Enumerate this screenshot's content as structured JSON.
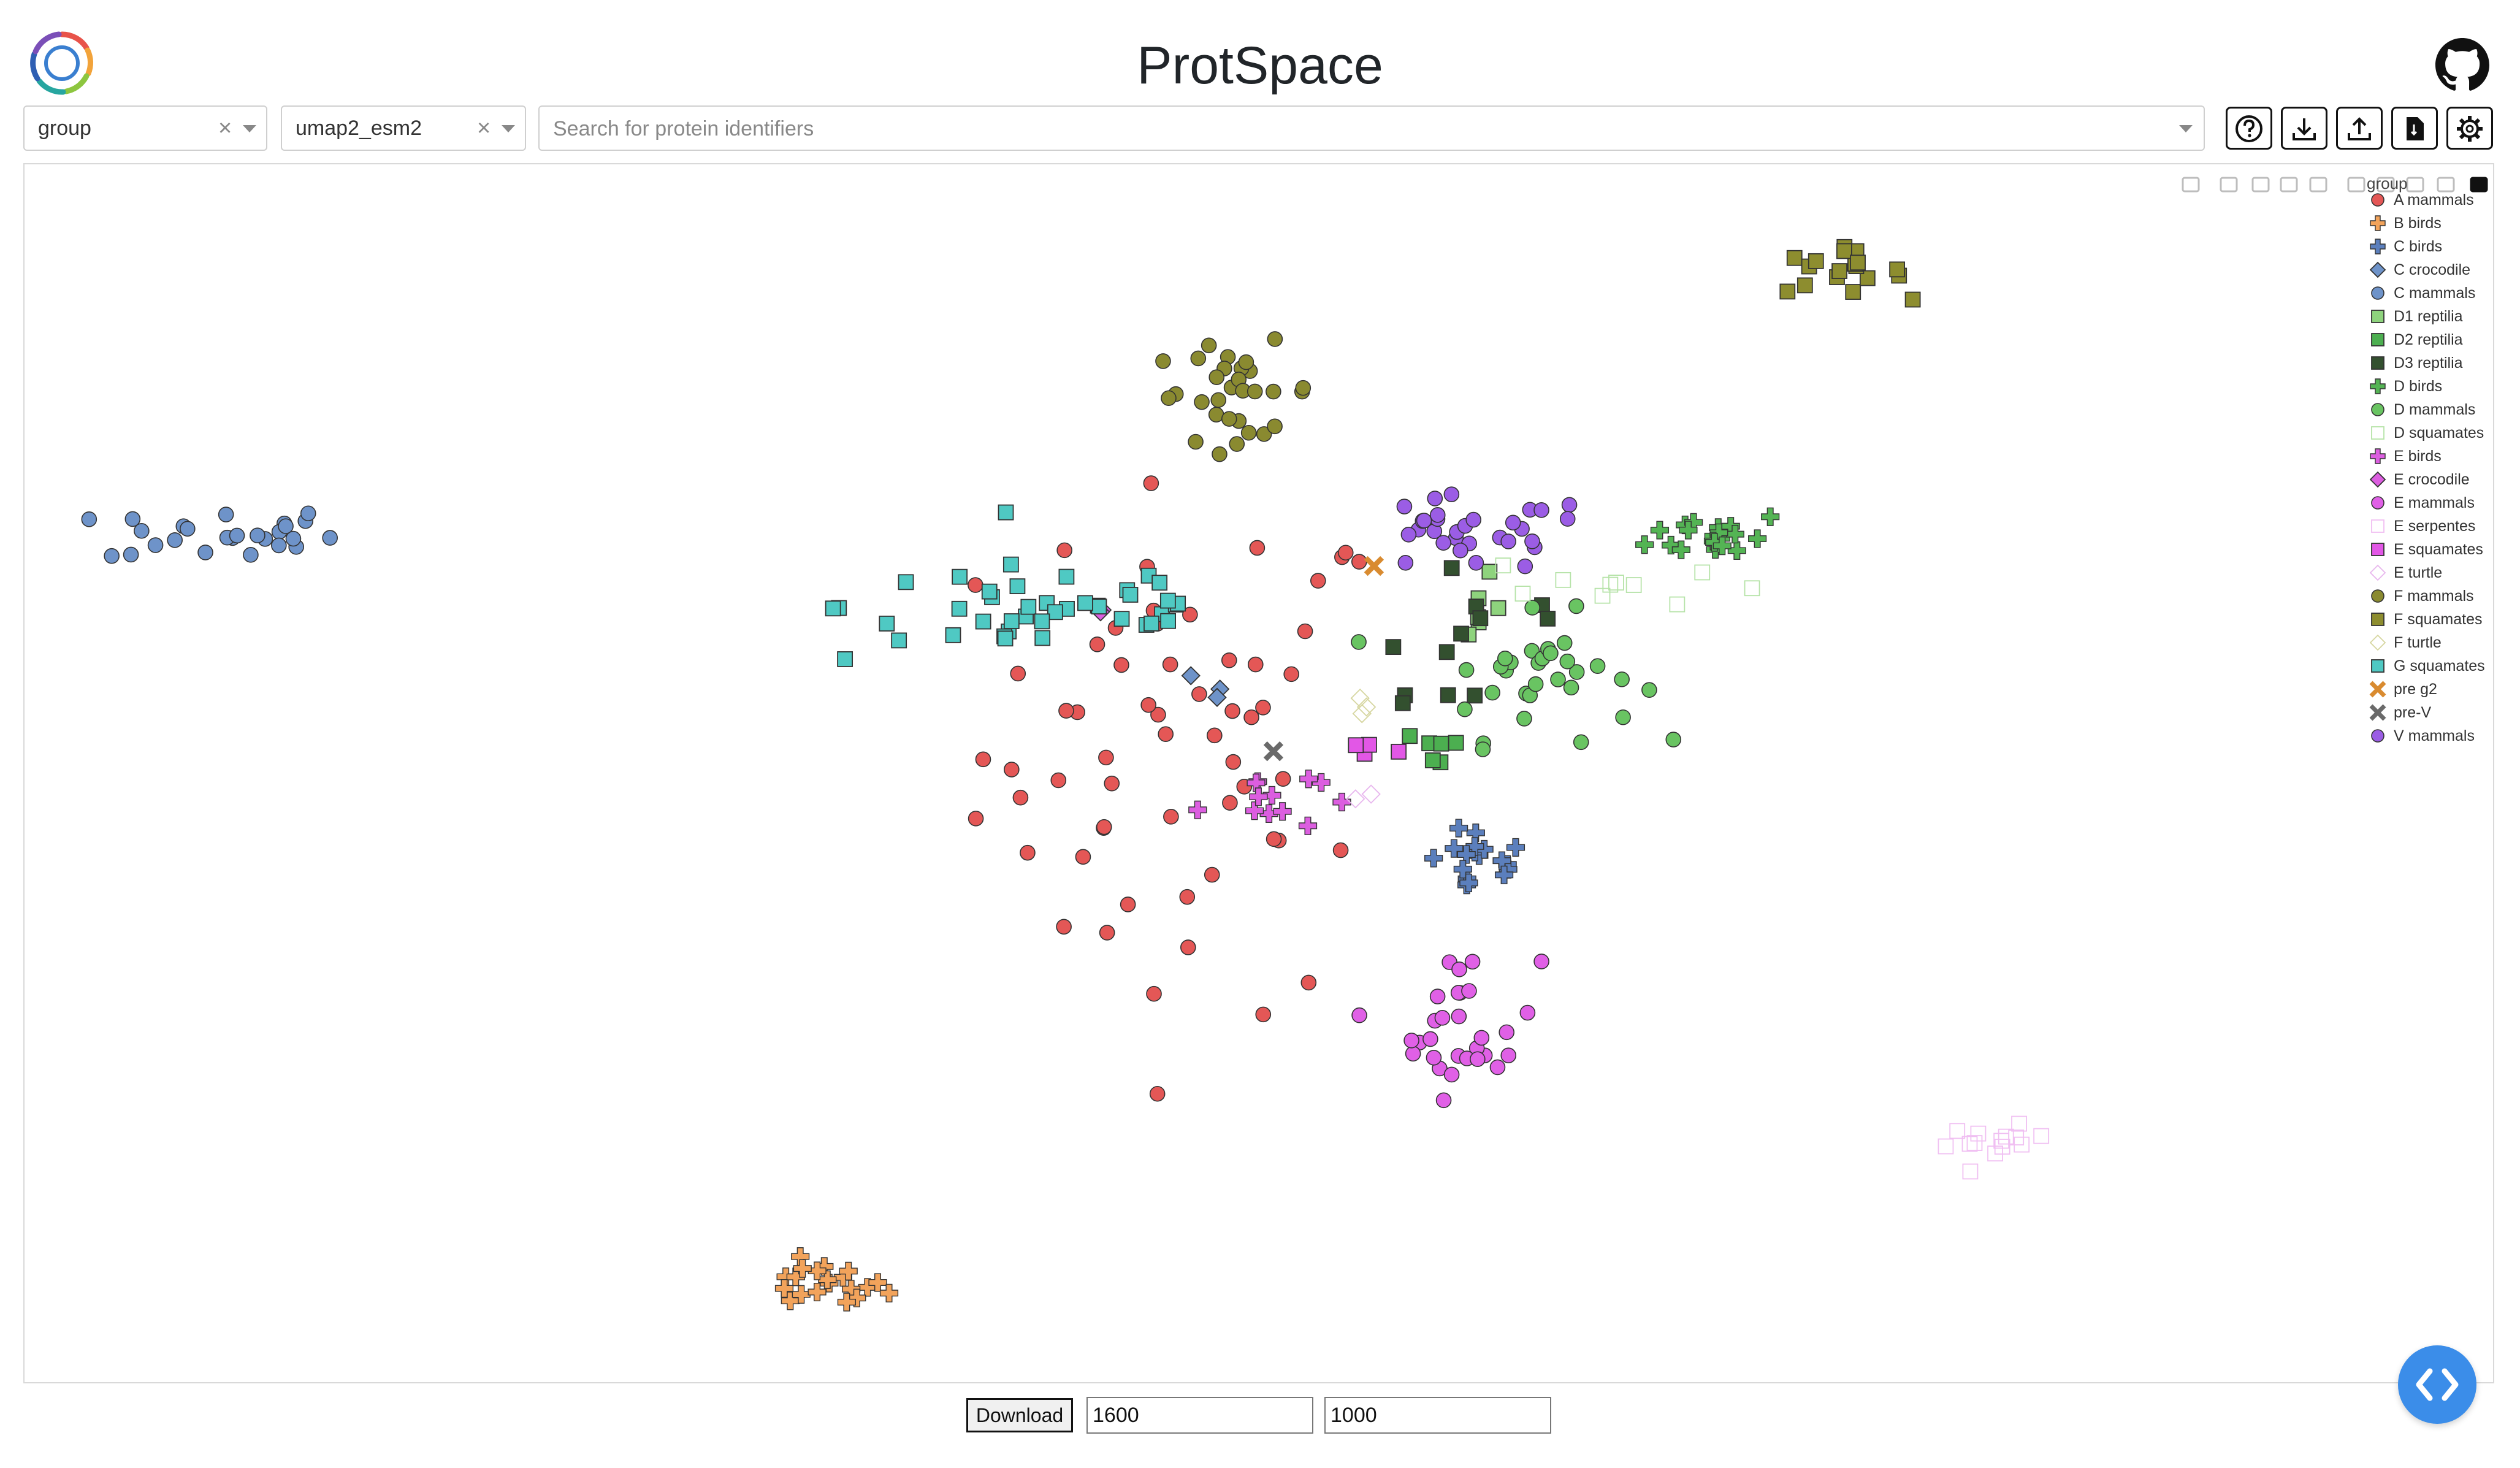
{
  "app": {
    "title": "ProtSpace"
  },
  "controls": {
    "feature_select": "group",
    "projection_select": "umap2_esm2",
    "search_placeholder": "Search for protein identifiers"
  },
  "toolbar": [
    {
      "name": "help-button",
      "icon": "question-circle-icon"
    },
    {
      "name": "download-button",
      "icon": "download-icon"
    },
    {
      "name": "upload-button",
      "icon": "upload-icon"
    },
    {
      "name": "json-file-button",
      "icon": "file-icon"
    },
    {
      "name": "settings-button",
      "icon": "gear-icon"
    }
  ],
  "plot_modebar": [
    "camera-icon",
    "zoom-icon",
    "pan-icon",
    "box-select-icon",
    "lasso-icon",
    "zoom-in-icon",
    "zoom-out-icon",
    "autoscale-icon",
    "home-icon",
    "plotly-logo-icon"
  ],
  "chart_data": {
    "type": "scatter",
    "legend_title": "group",
    "legend_position": "top-right",
    "xlim": [
      0,
      100
    ],
    "ylim": [
      0,
      100
    ],
    "grid": false,
    "series": [
      {
        "name": "A mammals",
        "color": "#e45756",
        "symbol": "circle",
        "cx": 50,
        "cy": 52,
        "sx": 4.5,
        "sy": 11,
        "n": 60
      },
      {
        "name": "B birds",
        "color": "#f2a35b",
        "symbol": "cross",
        "cx": 34,
        "cy": 7,
        "sx": 1.4,
        "sy": 1.0,
        "n": 20
      },
      {
        "name": "C birds",
        "color": "#5b7fbd",
        "symbol": "cross",
        "cx": 62.5,
        "cy": 42.5,
        "sx": 1.1,
        "sy": 1.5,
        "n": 18
      },
      {
        "name": "C crocodile",
        "color": "#6e93c9",
        "symbol": "diamond",
        "cx": 51,
        "cy": 56,
        "sx": 0.8,
        "sy": 1.0,
        "n": 3
      },
      {
        "name": "C mammals",
        "color": "#6e93c9",
        "symbol": "circle",
        "cx": 8,
        "cy": 70,
        "sx": 2.5,
        "sy": 1.2,
        "n": 26
      },
      {
        "name": "D1 reptilia",
        "color": "#8ed37d",
        "symbol": "square",
        "cx": 62,
        "cy": 65,
        "sx": 1.3,
        "sy": 2.0,
        "n": 6
      },
      {
        "name": "D2 reptilia",
        "color": "#4caf50",
        "symbol": "square",
        "cx": 60,
        "cy": 52,
        "sx": 1.2,
        "sy": 1.0,
        "n": 6
      },
      {
        "name": "D3 reptilia",
        "color": "#33502f",
        "symbol": "square",
        "cx": 62,
        "cy": 62,
        "sx": 3.0,
        "sy": 5.0,
        "n": 12
      },
      {
        "name": "D birds",
        "color": "#54b454",
        "symbol": "cross",
        "cx": 73,
        "cy": 70,
        "sx": 1.5,
        "sy": 1.0,
        "n": 20
      },
      {
        "name": "D mammals",
        "color": "#69c462",
        "symbol": "circle",
        "cx": 65,
        "cy": 58,
        "sx": 2.2,
        "sy": 2.6,
        "n": 32
      },
      {
        "name": "D squamates",
        "color": "#b6e3a8",
        "symbol": "square-open",
        "cx": 69,
        "cy": 66,
        "sx": 3.0,
        "sy": 1.2,
        "n": 10
      },
      {
        "name": "E birds",
        "color": "#dc5ee0",
        "symbol": "cross",
        "cx": 53,
        "cy": 48,
        "sx": 1.3,
        "sy": 1.5,
        "n": 12
      },
      {
        "name": "E crocodile",
        "color": "#dc5ee0",
        "symbol": "diamond",
        "cx": 46,
        "cy": 63,
        "sx": 0.9,
        "sy": 0.8,
        "n": 2
      },
      {
        "name": "E mammals",
        "color": "#e060e6",
        "symbol": "circle",
        "cx": 62,
        "cy": 29,
        "sx": 1.6,
        "sy": 3.0,
        "n": 30
      },
      {
        "name": "E serpentes",
        "color": "#f0bff2",
        "symbol": "square-open",
        "cx": 85,
        "cy": 19,
        "sx": 1.1,
        "sy": 0.7,
        "n": 14
      },
      {
        "name": "E squamates",
        "color": "#e257e6",
        "symbol": "square",
        "cx": 58,
        "cy": 52,
        "sx": 0.8,
        "sy": 0.8,
        "n": 4
      },
      {
        "name": "E turtle",
        "color": "#e8b7ee",
        "symbol": "diamond-open",
        "cx": 57.5,
        "cy": 48,
        "sx": 0.4,
        "sy": 0.6,
        "n": 2
      },
      {
        "name": "F mammals",
        "color": "#8a8a30",
        "symbol": "circle",
        "cx": 52,
        "cy": 82,
        "sx": 1.8,
        "sy": 2.0,
        "n": 30
      },
      {
        "name": "F squamates",
        "color": "#8d8d2f",
        "symbol": "square",
        "cx": 78,
        "cy": 92,
        "sx": 1.5,
        "sy": 0.9,
        "n": 18
      },
      {
        "name": "F turtle",
        "color": "#d6d6a0",
        "symbol": "diamond-open",
        "cx": 57.5,
        "cy": 55,
        "sx": 0.8,
        "sy": 0.8,
        "n": 3
      },
      {
        "name": "G squamates",
        "color": "#4fc9c3",
        "symbol": "square",
        "cx": 44,
        "cy": 64,
        "sx": 4.5,
        "sy": 2.4,
        "n": 42
      },
      {
        "name": "pre g2",
        "color": "#d98b30",
        "symbol": "x",
        "cx": 58,
        "cy": 67,
        "sx": 0.3,
        "sy": 0.3,
        "n": 1
      },
      {
        "name": "pre-V",
        "color": "#6a6a6a",
        "symbol": "x",
        "cx": 54,
        "cy": 52,
        "sx": 0.3,
        "sy": 0.3,
        "n": 1
      },
      {
        "name": "V mammals",
        "color": "#9b5de5",
        "symbol": "circle",
        "cx": 62,
        "cy": 70,
        "sx": 2.8,
        "sy": 1.6,
        "n": 30
      }
    ]
  },
  "footer": {
    "download_label": "Download",
    "width_value": "1600",
    "height_value": "1000"
  }
}
